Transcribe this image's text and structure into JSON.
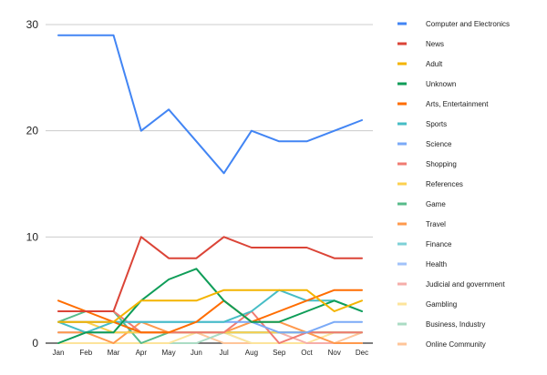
{
  "chart_data": {
    "type": "line",
    "title": "",
    "xlabel": "",
    "ylabel": "",
    "categories": [
      "Jan",
      "Feb",
      "Mar",
      "Apr",
      "May",
      "Jun",
      "Jul",
      "Aug",
      "Sep",
      "Oct",
      "Nov",
      "Dec"
    ],
    "ylim": [
      0,
      30
    ],
    "yticks": [
      "0",
      "10",
      "20",
      "30"
    ],
    "grid": true,
    "legend": "right",
    "series": [
      {
        "name": "Computer and Electronics",
        "color": "#4285f4",
        "values": [
          29,
          29,
          29,
          20,
          22,
          19,
          16,
          20,
          19,
          19,
          20,
          21
        ]
      },
      {
        "name": "News",
        "color": "#db4437",
        "values": [
          3,
          3,
          3,
          10,
          8,
          8,
          10,
          9,
          9,
          9,
          8,
          8
        ]
      },
      {
        "name": "Adult",
        "color": "#f4b400",
        "values": [
          2,
          2,
          2,
          4,
          4,
          4,
          5,
          5,
          5,
          5,
          3,
          4
        ]
      },
      {
        "name": "Unknown",
        "color": "#0f9d58",
        "values": [
          0,
          1,
          1,
          4,
          6,
          7,
          4,
          2,
          2,
          3,
          4,
          3
        ]
      },
      {
        "name": "Arts, Entertainment",
        "color": "#ff6d01",
        "values": [
          4,
          3,
          2,
          1,
          1,
          2,
          4,
          2,
          3,
          4,
          5,
          5
        ]
      },
      {
        "name": "Sports",
        "color": "#46bdc6",
        "values": [
          2,
          1,
          2,
          2,
          2,
          2,
          2,
          3,
          5,
          4,
          4,
          3
        ]
      },
      {
        "name": "Science",
        "color": "#7baaf7",
        "values": [
          2,
          2,
          2,
          2,
          2,
          2,
          2,
          2,
          1,
          1,
          2,
          2
        ]
      },
      {
        "name": "Shopping",
        "color": "#f07b72",
        "values": [
          3,
          3,
          3,
          1,
          1,
          1,
          1,
          3,
          0,
          1,
          1,
          1
        ]
      },
      {
        "name": "References",
        "color": "#fcd04f",
        "values": [
          2,
          2,
          1,
          1,
          1,
          1,
          1,
          1,
          1,
          1,
          1,
          1
        ]
      },
      {
        "name": "Game",
        "color": "#57bb8a",
        "values": [
          2,
          3,
          3,
          0,
          1,
          1,
          1,
          1,
          1,
          1,
          1,
          1
        ]
      },
      {
        "name": "Travel",
        "color": "#ff994d",
        "values": [
          1,
          1,
          0,
          2,
          1,
          1,
          1,
          2,
          2,
          1,
          0,
          0
        ]
      },
      {
        "name": "Finance",
        "color": "#7ed1d7",
        "values": [
          2,
          2,
          2,
          1,
          1,
          1,
          1,
          1,
          1,
          1,
          1,
          1
        ]
      },
      {
        "name": "Health",
        "color": "#a1c2fa",
        "values": [
          1,
          1,
          1,
          1,
          1,
          1,
          1,
          1,
          1,
          1,
          1,
          1
        ]
      },
      {
        "name": "Judicial and government",
        "color": "#f6aea9",
        "values": [
          1,
          1,
          1,
          1,
          1,
          1,
          1,
          1,
          1,
          0,
          0,
          0
        ]
      },
      {
        "name": "Gambling",
        "color": "#fde49b",
        "values": [
          0,
          0,
          0,
          0,
          0,
          1,
          1,
          0,
          0,
          0,
          1,
          1
        ]
      },
      {
        "name": "Business, Industry",
        "color": "#abdcc4",
        "values": [
          0,
          0,
          0,
          0,
          0,
          0,
          1,
          0,
          0,
          0,
          0,
          0
        ]
      },
      {
        "name": "Online Community",
        "color": "#ffc599",
        "values": [
          1,
          1,
          1,
          1,
          1,
          1,
          0,
          0,
          0,
          0,
          0,
          1
        ]
      }
    ]
  }
}
